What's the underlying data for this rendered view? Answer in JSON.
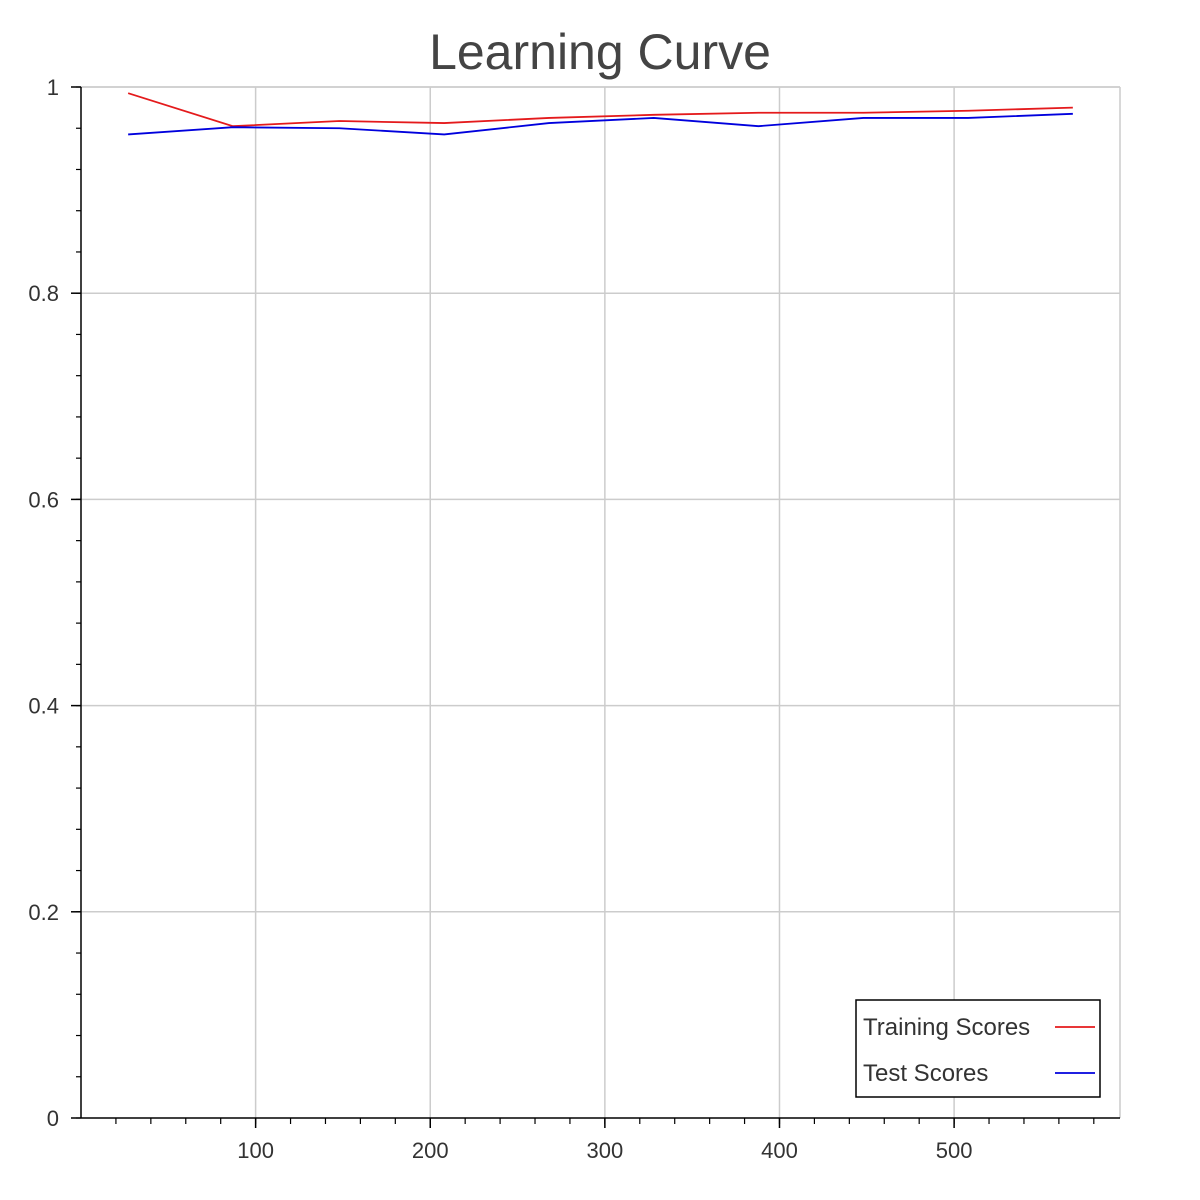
{
  "chart_data": {
    "type": "line",
    "title": "Learning Curve",
    "xlabel": "",
    "ylabel": "",
    "xlim": [
      0,
      595
    ],
    "ylim": [
      0,
      1
    ],
    "x_ticks": [
      100,
      200,
      300,
      400,
      500
    ],
    "x_tick_labels": [
      "100",
      "200",
      "300",
      "400",
      "500"
    ],
    "y_ticks": [
      0,
      0.2,
      0.4,
      0.6,
      0.8,
      1
    ],
    "y_tick_labels": [
      "0",
      "0.2",
      "0.4",
      "0.6",
      "0.8",
      "1"
    ],
    "x_minor_step": 20,
    "y_minor_step": 0.04,
    "grid": true,
    "legend_position": "bottom-right",
    "x": [
      27,
      87,
      148,
      208,
      268,
      328,
      388,
      448,
      508,
      568
    ],
    "series": [
      {
        "name": "Training Scores",
        "color": "#e41a1c",
        "values": [
          0.994,
          0.962,
          0.967,
          0.965,
          0.97,
          0.973,
          0.975,
          0.975,
          0.977,
          0.98
        ]
      },
      {
        "name": "Test Scores",
        "color": "#0000dd",
        "values": [
          0.954,
          0.961,
          0.96,
          0.954,
          0.965,
          0.97,
          0.962,
          0.97,
          0.97,
          0.974
        ]
      }
    ]
  }
}
